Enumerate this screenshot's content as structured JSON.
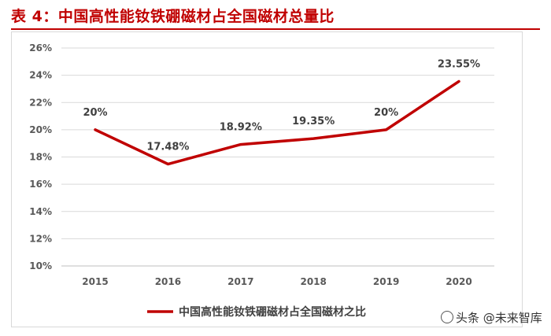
{
  "header": {
    "title": "表 4：中国高性能钕铁硼磁材占全国磁材总量比"
  },
  "chart_data": {
    "type": "line",
    "title": "",
    "categories": [
      "2015",
      "2016",
      "2017",
      "2018",
      "2019",
      "2020"
    ],
    "series": [
      {
        "name": "中国高性能钕铁硼磁材占全国磁材之比",
        "values": [
          20,
          17.48,
          18.92,
          19.35,
          20,
          23.55
        ],
        "labels": [
          "20%",
          "17.48%",
          "18.92%",
          "19.35%",
          "20%",
          "23.55%"
        ],
        "color": "#c00000"
      }
    ],
    "yticks": [
      "10%",
      "12%",
      "14%",
      "16%",
      "18%",
      "20%",
      "22%",
      "24%",
      "26%"
    ],
    "ylim": [
      10,
      26
    ],
    "ystep": 2,
    "grid": true,
    "legend_position": "bottom",
    "xlabel": "",
    "ylabel": ""
  },
  "watermark": {
    "text": "头条 @未来智库"
  }
}
